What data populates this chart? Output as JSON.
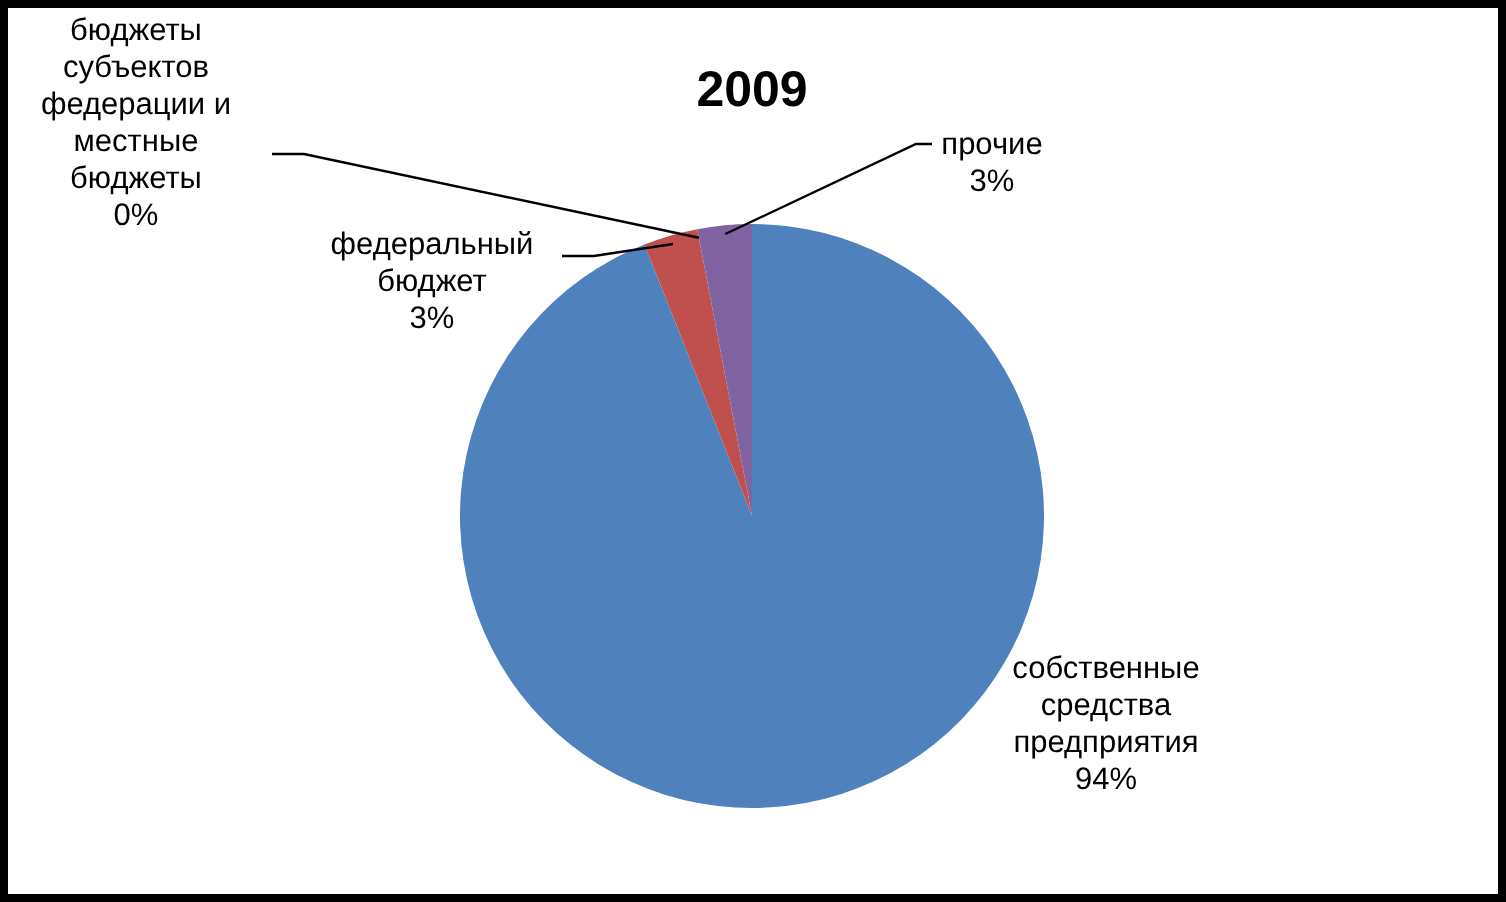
{
  "chart_data": {
    "type": "pie",
    "title": "2009",
    "categories": [
      "собственные средства предприятия",
      "федеральный бюджет",
      "бюджеты субъектов федерации и местные бюджеты",
      "прочие"
    ],
    "values": [
      94,
      3,
      0,
      3
    ],
    "colors": [
      "#4f81bd",
      "#c0504d",
      "#9bbb59",
      "#8064a2"
    ],
    "value_labels": [
      "94%",
      "3%",
      "0%",
      "3%"
    ]
  }
}
